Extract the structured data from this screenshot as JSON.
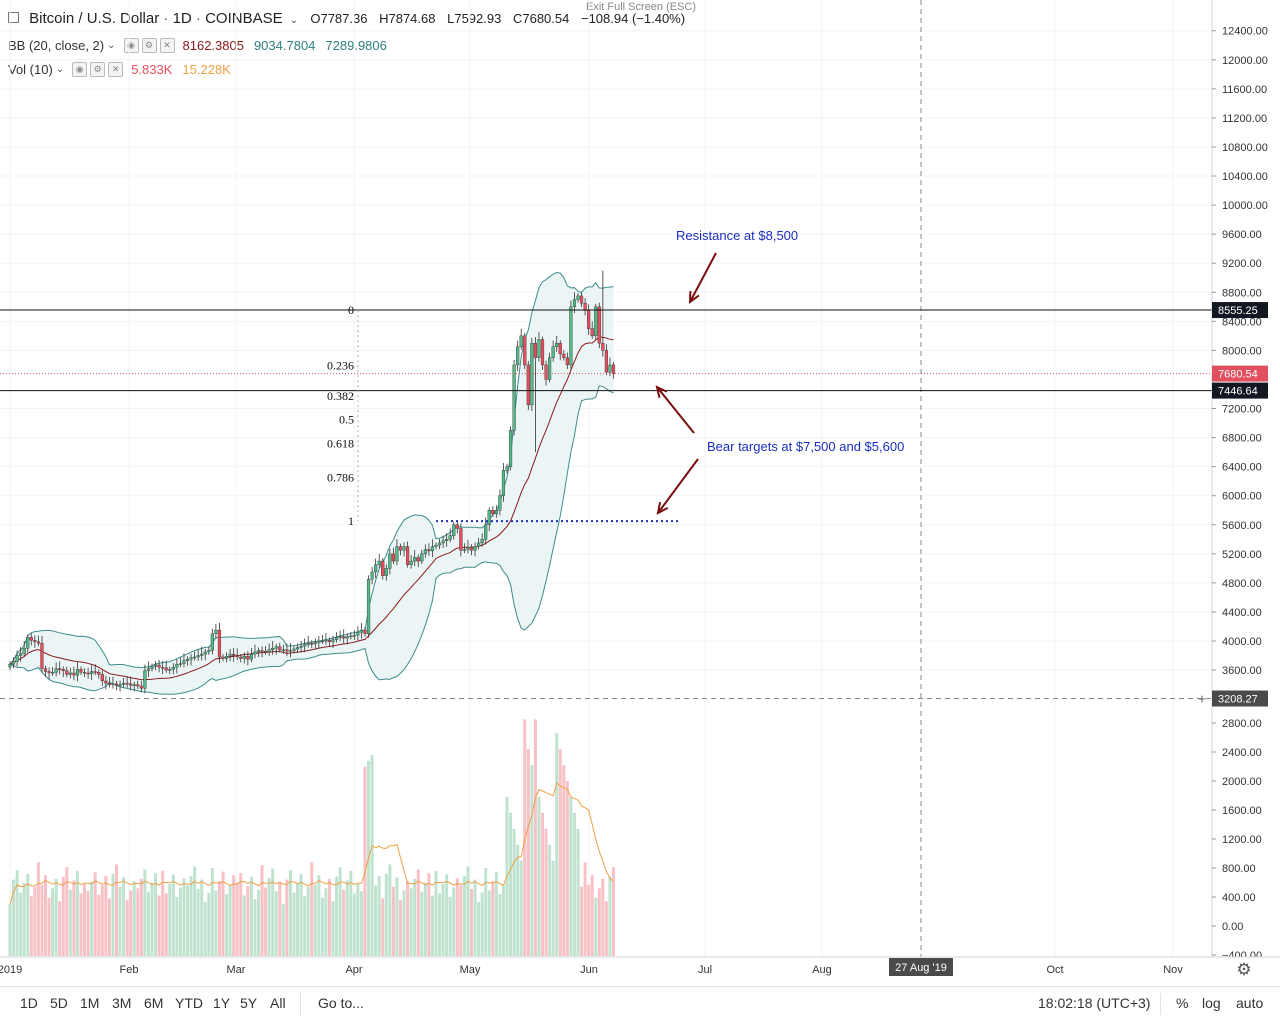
{
  "header": {
    "symbol": "Bitcoin / U.S. Dollar",
    "interval": "1D",
    "exchange": "COINBASE",
    "open": "O7787.36",
    "high": "H7874.68",
    "low": "L7592.93",
    "close": "C7680.54",
    "change": "−108.94 (−1.40%)",
    "exit_fullscreen": "Exit Full Screen (ESC)"
  },
  "indicators": {
    "bb": {
      "label": "BB (20, close, 2)",
      "v1": "8162.3805",
      "v2": "9034.7804",
      "v3": "7289.9806"
    },
    "vol": {
      "label": "Vol (10)",
      "v1": "5.833K",
      "v2": "15.228K"
    }
  },
  "colors": {
    "up": "#53b987",
    "down": "#eb4d5c",
    "up_vol": "#bfe3cf",
    "down_vol": "#f7c1c5",
    "bb_band": "#3e8c8c",
    "bb_fill": "#e7f3f3",
    "basis": "#8b1a1a",
    "annot_text": "#1a2fbf",
    "arrow": "#7a0f0f",
    "vol_ma": "#f0a045",
    "price_tag": "#e0505f",
    "level_tag": "#131722"
  },
  "chart_data": {
    "type": "candlestick",
    "y_range": [
      3000,
      12600
    ],
    "y_ticks": [
      3600,
      4000,
      4400,
      4800,
      5200,
      5600,
      6000,
      6400,
      6800,
      7200,
      8000,
      8400,
      8800,
      9200,
      9600,
      10000,
      10400,
      10800,
      11200,
      11600,
      12000,
      12400
    ],
    "vol_ticks": [
      "2800.00",
      "2400.00",
      "2000.00",
      "1600.00",
      "1200.00",
      "800.00",
      "400.00",
      "0.00",
      "−400.00"
    ],
    "x_labels": [
      "2019",
      "Feb",
      "Mar",
      "Apr",
      "May",
      "Jun",
      "Jul",
      "Aug",
      "Oct",
      "Nov"
    ],
    "crosshair_date": "27 Aug '19",
    "fib_levels": [
      {
        "label": "0",
        "price": 8555
      },
      {
        "label": "0.236",
        "price": 7795
      },
      {
        "label": "0.382",
        "price": 7373
      },
      {
        "label": "0.5",
        "price": 7050
      },
      {
        "label": "0.618",
        "price": 6720
      },
      {
        "label": "0.786",
        "price": 6250
      },
      {
        "label": "1",
        "price": 5650
      }
    ],
    "horizontal_levels": [
      {
        "label": "8555.25",
        "price": 8555.25
      },
      {
        "label": "7446.64",
        "price": 7446.64
      }
    ],
    "last_price": {
      "label": "7680.54",
      "price": 7680.54
    },
    "crosshair_price": {
      "label": "3208.27",
      "price": 3208.27
    },
    "annotations": [
      {
        "text": "Resistance at $8,500"
      },
      {
        "text": "Bear targets at $7,500 and $5,600"
      }
    ],
    "closes": [
      3680,
      3720,
      3800,
      3830,
      3900,
      4050,
      4010,
      3990,
      3970,
      3620,
      3580,
      3560,
      3570,
      3620,
      3610,
      3590,
      3540,
      3560,
      3530,
      3610,
      3570,
      3560,
      3550,
      3580,
      3570,
      3540,
      3450,
      3420,
      3400,
      3410,
      3390,
      3400,
      3420,
      3410,
      3390,
      3400,
      3380,
      3350,
      3590,
      3620,
      3650,
      3670,
      3640,
      3630,
      3600,
      3610,
      3640,
      3680,
      3690,
      3730,
      3750,
      3770,
      3780,
      3800,
      3820,
      3850,
      3870,
      4100,
      4150,
      3780,
      3760,
      3790,
      3820,
      3800,
      3780,
      3760,
      3790,
      3750,
      3820,
      3850,
      3870,
      3860,
      3850,
      3880,
      3900,
      3920,
      3880,
      3880,
      3860,
      3870,
      3890,
      3910,
      3930,
      3950,
      3970,
      3960,
      3980,
      4000,
      4000,
      4010,
      3990,
      4020,
      4050,
      4060,
      4040,
      4060,
      4070,
      4080,
      4120,
      4150,
      4100,
      4850,
      4950,
      5050,
      5100,
      4900,
      5000,
      5200,
      5100,
      5300,
      5250,
      5300,
      5050,
      5100,
      5150,
      5100,
      5200,
      5260,
      5240,
      5300,
      5320,
      5350,
      5380,
      5400,
      5450,
      5600,
      5550,
      5250,
      5260,
      5290,
      5250,
      5300,
      5350,
      5400,
      5600,
      5800,
      5750,
      5800,
      6000,
      6350,
      6400,
      6900,
      7800,
      8050,
      8200,
      7800,
      7250,
      8100,
      7900,
      8150,
      7800,
      7600,
      7900,
      8050,
      8100,
      7950,
      7900,
      7800,
      8600,
      8700,
      8750,
      8650,
      8550,
      8300,
      8200,
      8600,
      8100,
      8000,
      7700,
      7800,
      7680
    ],
    "volume_series": [
      {
        "name": "Vol",
        "values": []
      },
      {
        "name": "Vol MA 10",
        "values": []
      }
    ]
  },
  "footer": {
    "timeframes": [
      "1D",
      "5D",
      "1M",
      "3M",
      "6M",
      "YTD",
      "1Y",
      "5Y",
      "All"
    ],
    "goto": "Go to...",
    "clock": "18:02:18 (UTC+3)",
    "percent": "%",
    "log": "log",
    "auto": "auto"
  }
}
